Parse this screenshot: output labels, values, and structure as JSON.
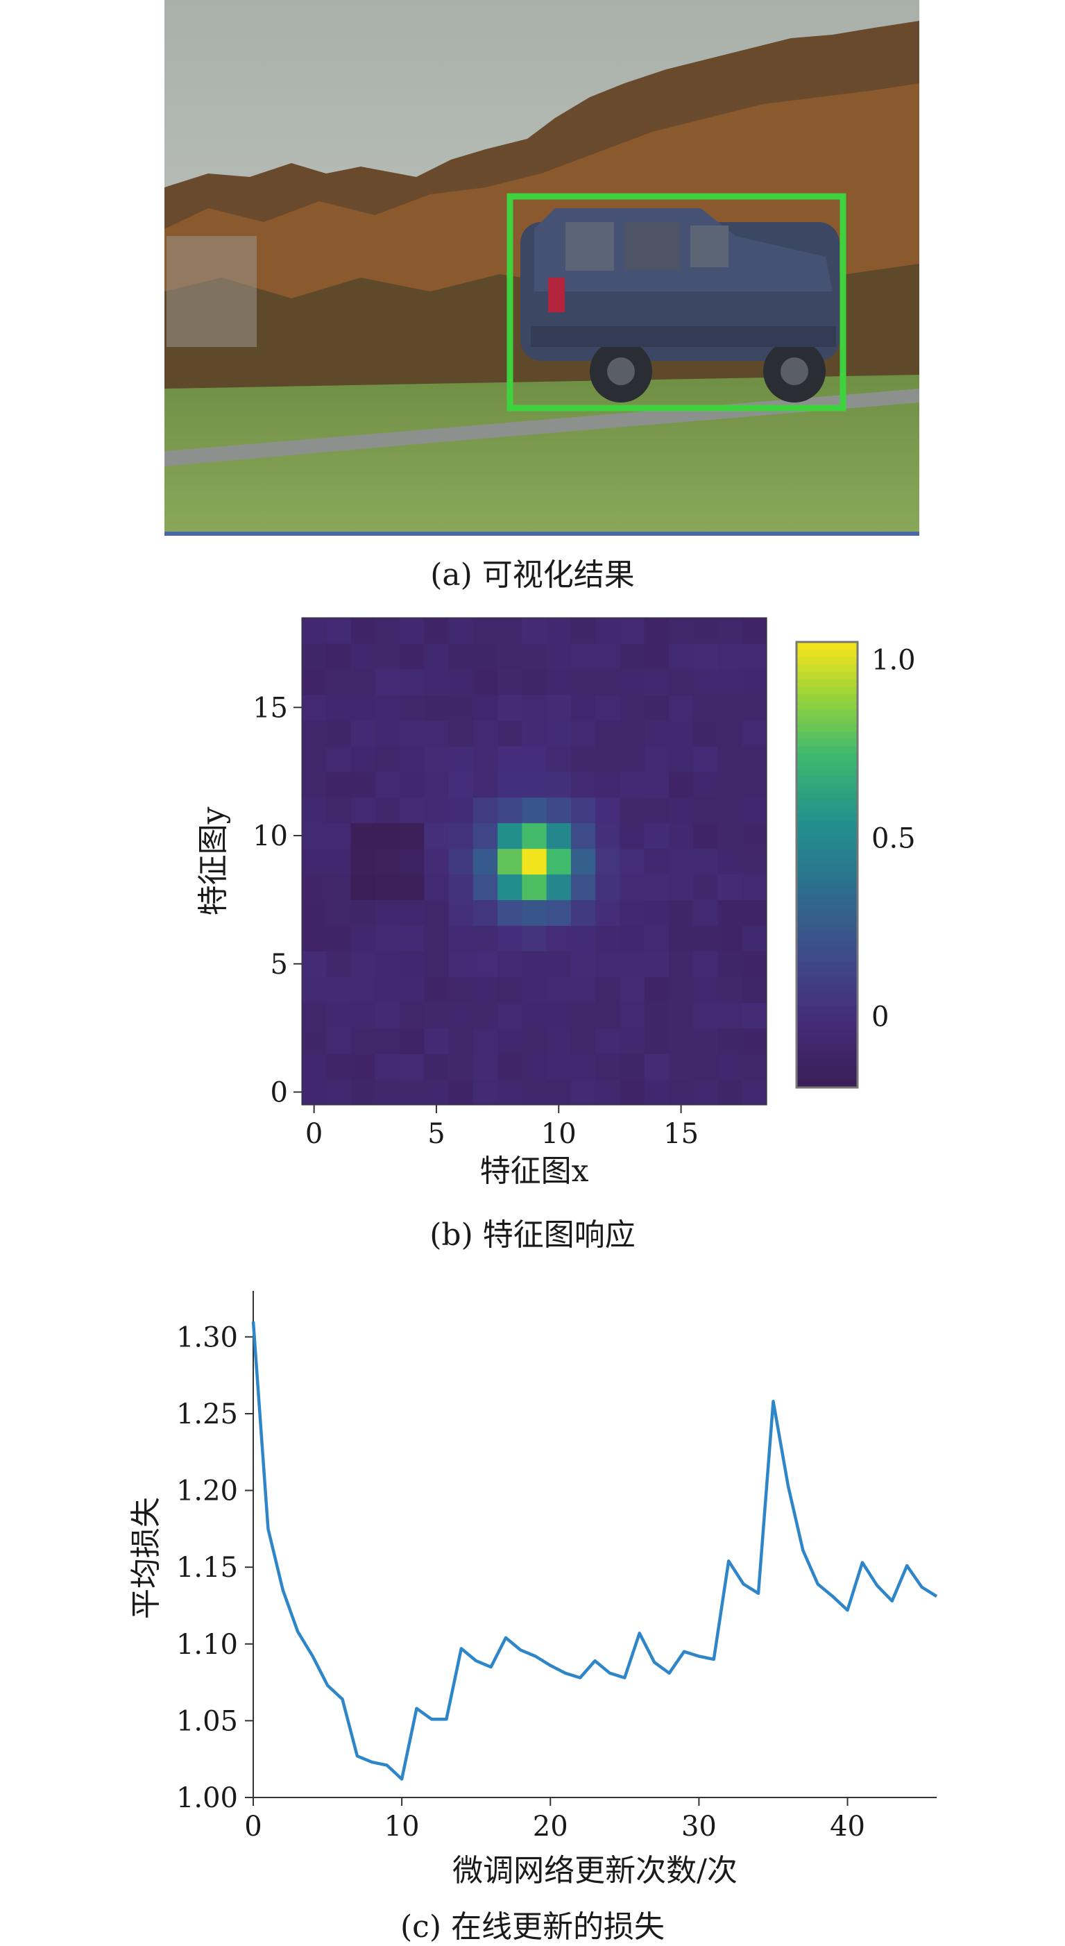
{
  "captions": {
    "a": "(a) 可视化结果",
    "b": "(b) 特征图响应",
    "c": "(c) 在线更新的损失"
  },
  "colors": {
    "box": "#3fd23f",
    "line": "#2e86c8",
    "viridis_low": "#3b1f58",
    "viridis_high": "#f2e41c"
  },
  "photo": {
    "description_icon": "photo-car-icon",
    "detection_box_color": "#3fd23f"
  },
  "chart_data": [
    {
      "type": "heatmap",
      "xlabel": "特征图x",
      "ylabel": "特征图y",
      "x_ticks": [
        "0",
        "5",
        "10",
        "15"
      ],
      "y_ticks": [
        "0",
        "5",
        "10",
        "15"
      ],
      "xlim": [
        0,
        18
      ],
      "ylim": [
        0,
        18
      ],
      "grid_size": 19,
      "peak": {
        "x": 9,
        "y": 9,
        "value": 1.0
      },
      "colorbar": {
        "ticks": [
          "1.0",
          "0.5",
          "0"
        ],
        "range": [
          -0.2,
          1.05
        ]
      },
      "grid": false
    },
    {
      "type": "line",
      "xlabel": "微调网络更新次数/次",
      "ylabel": "平均损失",
      "x_ticks": [
        "0",
        "10",
        "20",
        "30",
        "40"
      ],
      "y_ticks": [
        "1.00",
        "1.05",
        "1.10",
        "1.15",
        "1.20",
        "1.25",
        "1.30"
      ],
      "xlim": [
        0,
        46
      ],
      "ylim": [
        1.0,
        1.33
      ],
      "grid": false,
      "series": [
        {
          "x": [
            0,
            1,
            2,
            3,
            4,
            5,
            6,
            7,
            8,
            9,
            10,
            11,
            12,
            13,
            14,
            15,
            16,
            17,
            18,
            19,
            20,
            21,
            22,
            23,
            24,
            25,
            26,
            27,
            28,
            29,
            30,
            31,
            32,
            33,
            34,
            35,
            36,
            37,
            38,
            39,
            40,
            41,
            42,
            43,
            44,
            45,
            46
          ],
          "values": [
            1.31,
            1.175,
            1.135,
            1.108,
            1.092,
            1.073,
            1.064,
            1.027,
            1.023,
            1.021,
            1.012,
            1.058,
            1.051,
            1.051,
            1.097,
            1.089,
            1.085,
            1.104,
            1.096,
            1.092,
            1.086,
            1.081,
            1.078,
            1.089,
            1.081,
            1.078,
            1.107,
            1.088,
            1.081,
            1.095,
            1.092,
            1.09,
            1.154,
            1.139,
            1.133,
            1.258,
            1.203,
            1.161,
            1.139,
            1.131,
            1.122,
            1.153,
            1.138,
            1.128,
            1.151,
            1.137,
            1.131
          ]
        }
      ]
    }
  ]
}
